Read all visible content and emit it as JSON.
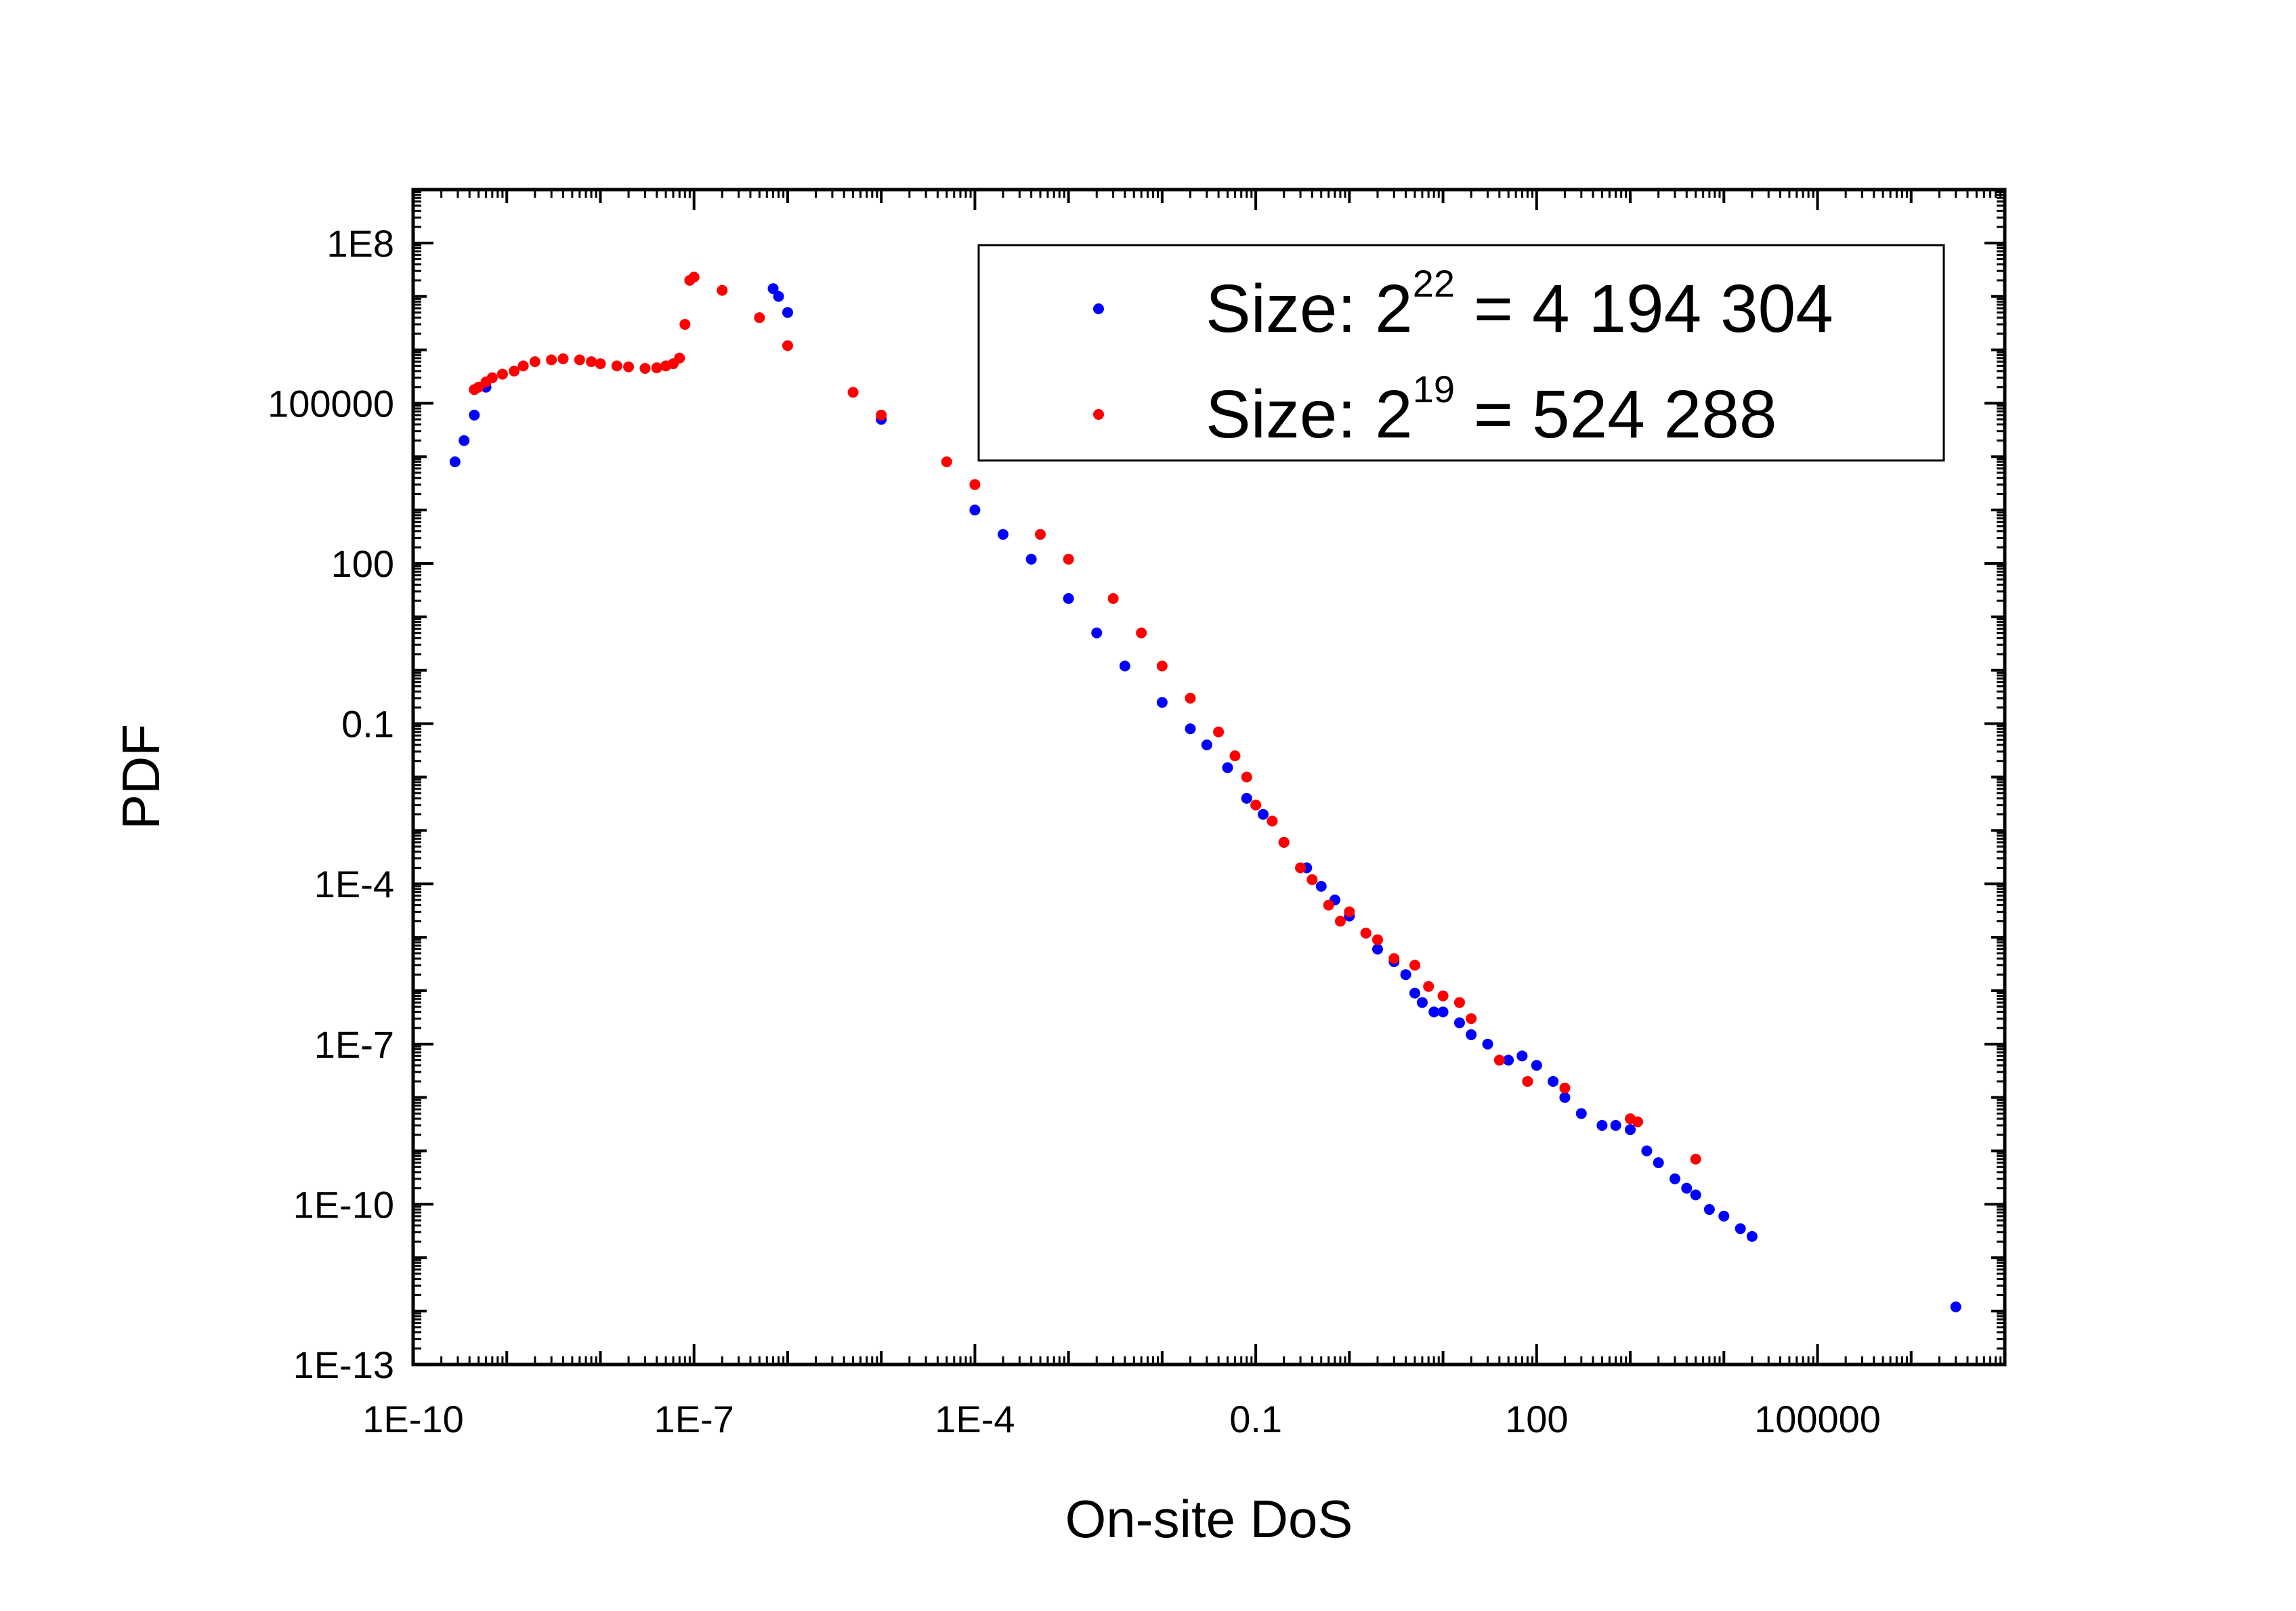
{
  "chart_data": {
    "type": "scatter",
    "title": "",
    "xlabel": "On-site DoS",
    "ylabel": "PDF",
    "x_scale": "log",
    "y_scale": "log",
    "xlim": [
      1e-10,
      10000000.0
    ],
    "ylim": [
      1e-13,
      1000000000.0
    ],
    "grid": false,
    "legend_position": "top-right",
    "x_tick_labels": [
      "1E-10",
      "1E-7",
      "1E-4",
      "0.1",
      "100",
      "100000"
    ],
    "y_tick_labels": [
      "1E8",
      "100000",
      "100",
      "0.1",
      "1E-4",
      "1E-7",
      "1E-10",
      "1E-13"
    ],
    "legend": {
      "entries": [
        {
          "prefix": "Size: 2",
          "sup": "22",
          "suffix": " = 4 194 304"
        },
        {
          "prefix": "Size: 2",
          "sup": "19",
          "suffix": " = 524 288"
        }
      ]
    },
    "series": [
      {
        "name": "Size: 2^22 = 4 194 304",
        "color": "#0000ff",
        "x": [
          2.8e-10,
          3.5e-10,
          4.5e-10,
          6e-10,
          7e-07,
          8e-07,
          1e-06,
          1e-05,
          0.0001,
          0.0002,
          0.0004,
          0.001,
          0.002,
          0.004,
          0.01,
          0.02,
          0.03,
          0.05,
          0.08,
          0.12,
          0.2,
          0.35,
          0.5,
          0.7,
          1,
          1.5,
          2,
          3,
          4,
          5,
          6,
          8,
          10,
          15,
          20,
          30,
          50,
          70,
          100,
          150,
          200,
          300,
          500,
          700,
          1000,
          1500,
          2000,
          3000,
          4000,
          5000,
          7000,
          10000,
          15000,
          20000,
          3000000.0
        ],
        "y": [
          8000.0,
          20000.0,
          60000.0,
          200000.0,
          14000000.0,
          10000000.0,
          5000000.0,
          50000.0,
          1000.0,
          350.0,
          120.0,
          22,
          5,
          1.2,
          0.25,
          0.08,
          0.04,
          0.015,
          0.004,
          0.002,
          0.0006,
          0.0002,
          9e-05,
          5e-05,
          2.5e-05,
          1.2e-05,
          6e-06,
          3.5e-06,
          2e-06,
          9e-07,
          6e-07,
          4e-07,
          4e-07,
          2.5e-07,
          1.5e-07,
          1e-07,
          5e-08,
          6e-08,
          4e-08,
          2e-08,
          1e-08,
          5e-09,
          3e-09,
          3e-09,
          2.5e-09,
          1e-09,
          6e-10,
          3e-10,
          2e-10,
          1.5e-10,
          8e-11,
          6e-11,
          3.5e-11,
          2.5e-11,
          1.2e-12
        ]
      },
      {
        "name": "Size: 2^19 = 524 288",
        "color": "#ff0000",
        "x": [
          4.5e-10,
          5e-10,
          6e-10,
          7e-10,
          9e-10,
          1.2e-09,
          1.5e-09,
          2e-09,
          3e-09,
          4e-09,
          6e-09,
          8e-09,
          1e-08,
          1.5e-08,
          2e-08,
          3e-08,
          4e-08,
          5e-08,
          6e-08,
          7e-08,
          8e-08,
          9e-08,
          1e-07,
          2e-07,
          5e-07,
          1e-06,
          5e-06,
          1e-05,
          5e-05,
          0.0001,
          0.0005,
          0.001,
          0.003,
          0.006,
          0.01,
          0.02,
          0.04,
          0.06,
          0.08,
          0.1,
          0.15,
          0.2,
          0.3,
          0.4,
          0.6,
          0.8,
          1,
          1.5,
          2,
          3,
          5,
          7,
          10,
          15,
          20,
          40,
          80,
          200,
          1000,
          1200,
          5000
        ],
        "y": [
          180000.0,
          200000.0,
          250000.0,
          300000.0,
          350000.0,
          400000.0,
          500000.0,
          600000.0,
          650000.0,
          680000.0,
          650000.0,
          600000.0,
          550000.0,
          500000.0,
          480000.0,
          450000.0,
          460000.0,
          500000.0,
          550000.0,
          700000.0,
          3000000.0,
          20000000.0,
          23000000.0,
          13000000.0,
          4000000.0,
          1200000.0,
          160000.0,
          60000.0,
          8000.0,
          3000.0,
          350.0,
          120.0,
          22,
          5,
          1.2,
          0.3,
          0.07,
          0.025,
          0.01,
          0.003,
          0.0015,
          0.0006,
          0.0002,
          0.00012,
          4e-05,
          2e-05,
          3e-05,
          1.2e-05,
          9e-06,
          4e-06,
          3e-06,
          1.2e-06,
          8e-07,
          6e-07,
          3e-07,
          5e-08,
          2e-08,
          1.5e-08,
          4e-09,
          3.5e-09,
          7e-10
        ]
      }
    ]
  }
}
